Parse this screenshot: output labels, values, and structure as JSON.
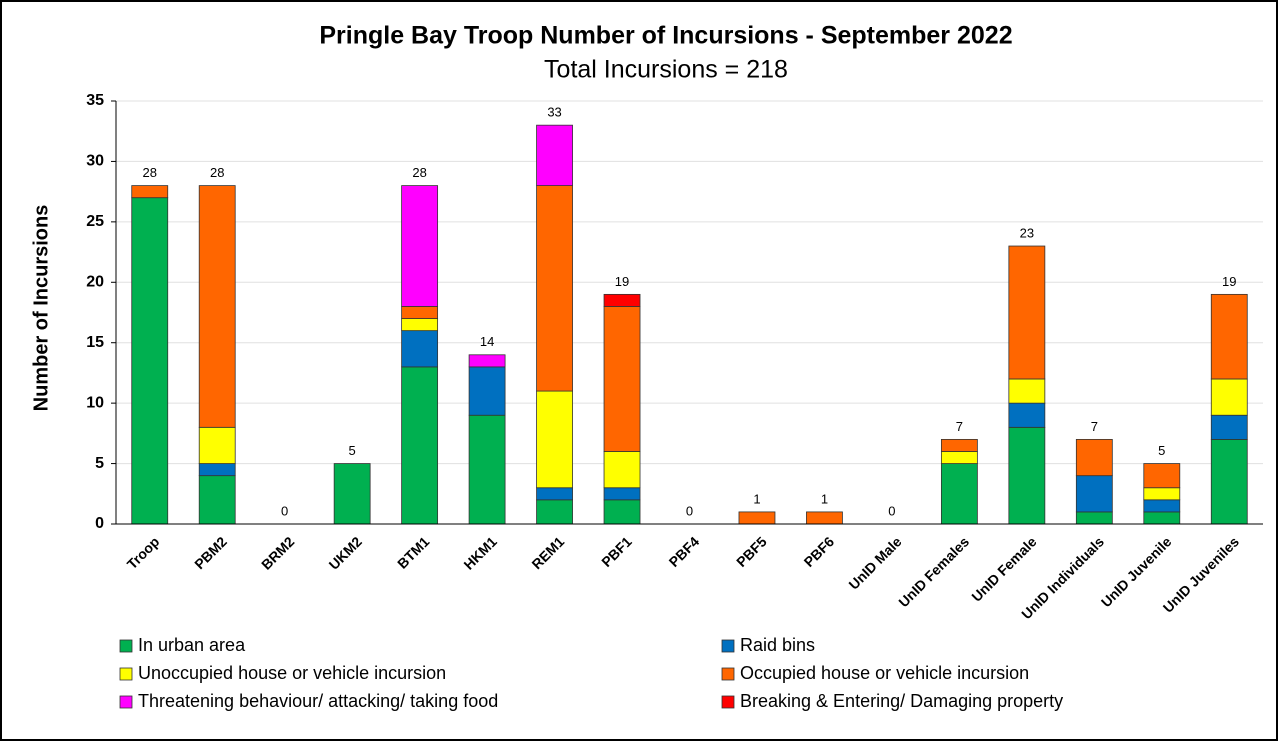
{
  "chart_data": {
    "type": "stacked_bar",
    "title": "Pringle Bay Troop Number of Incursions - September 2022",
    "subtitle": "Total Incursions = 218",
    "y_label": "Number of Incursions",
    "categories": [
      "Troop",
      "PBM2",
      "BRM2",
      "UKM2",
      "BTM1",
      "HKM1",
      "REM1",
      "PBF1",
      "PBF4",
      "PBF5",
      "PBF6",
      "UnID Male",
      "UnID Females",
      "UnID Female",
      "UnID Individuals",
      "UnID Juvenile",
      "UnID Juveniles"
    ],
    "series": [
      {
        "name": "In urban area",
        "color": "#00b050",
        "values": [
          27,
          4,
          0,
          5,
          13,
          9,
          2,
          2,
          0,
          0,
          0,
          0,
          5,
          8,
          1,
          1,
          7
        ]
      },
      {
        "name": "Raid bins",
        "color": "#0070c0",
        "values": [
          0,
          1,
          0,
          0,
          3,
          4,
          1,
          1,
          0,
          0,
          0,
          0,
          0,
          2,
          3,
          1,
          2
        ]
      },
      {
        "name": "Unoccupied house or vehicle incursion",
        "color": "#ffff00",
        "values": [
          0,
          3,
          0,
          0,
          1,
          0,
          8,
          3,
          0,
          0,
          0,
          0,
          1,
          2,
          0,
          1,
          3
        ]
      },
      {
        "name": "Occupied house or vehicle incursion",
        "color": "#ff6600",
        "values": [
          1,
          20,
          0,
          0,
          1,
          0,
          17,
          12,
          0,
          1,
          1,
          0,
          1,
          11,
          3,
          2,
          7
        ]
      },
      {
        "name": "Threatening behaviour/ attacking/ taking food",
        "color": "#ff00ff",
        "values": [
          0,
          0,
          0,
          0,
          10,
          1,
          5,
          0,
          0,
          0,
          0,
          0,
          0,
          0,
          0,
          0,
          0
        ]
      },
      {
        "name": "Breaking & Entering/ Damaging property",
        "color": "#ff0000",
        "values": [
          0,
          0,
          0,
          0,
          0,
          0,
          0,
          1,
          0,
          0,
          0,
          0,
          0,
          0,
          0,
          0,
          0
        ]
      }
    ],
    "totals": [
      28,
      28,
      0,
      5,
      28,
      14,
      33,
      19,
      0,
      1,
      1,
      0,
      7,
      23,
      7,
      5,
      19
    ],
    "ylim": [
      0,
      35
    ],
    "yticks": [
      0,
      5,
      10,
      15,
      20,
      25,
      30,
      35
    ],
    "grid": true,
    "legend": "bottom"
  }
}
